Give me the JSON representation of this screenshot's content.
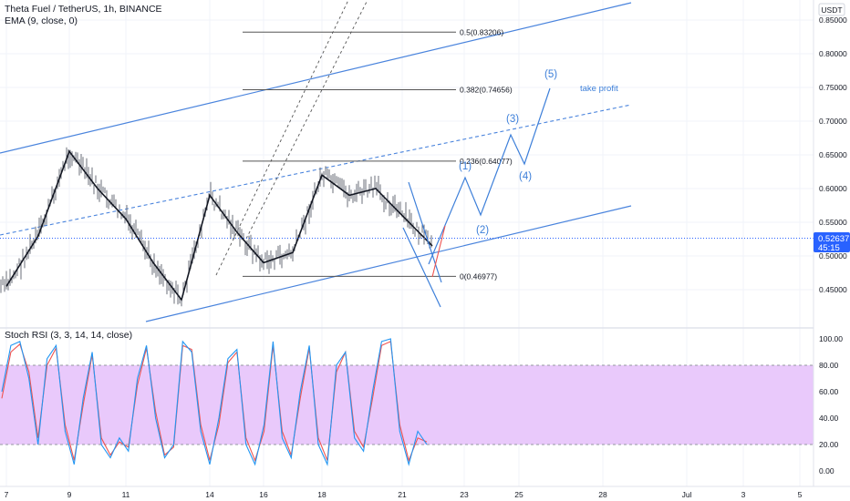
{
  "header": {
    "symbol_line": "Theta Fuel / TetherUS, 1h, BINANCE",
    "ema_line": "EMA (9, close, 0)",
    "currency": "USDT"
  },
  "rsi_panel": {
    "label": "Stoch RSI (3, 3, 14, 14, close)",
    "band_upper": 80,
    "band_lower": 20,
    "band_color": "#e9c9fb",
    "k_color": "#2196f3",
    "d_color": "#ef5350"
  },
  "price_tag": {
    "value": "0.52637",
    "countdown": "45:15",
    "color": "#2962ff"
  },
  "fib_levels": [
    {
      "label": "0.5(0.83206)",
      "value": 0.83206
    },
    {
      "label": "0.382(0.74656)",
      "value": 0.74656
    },
    {
      "label": "0.236(0.64077)",
      "value": 0.64077
    },
    {
      "label": "0(0.46977)",
      "value": 0.46977
    }
  ],
  "annotations": {
    "wave_labels": [
      "(1)",
      "(2)",
      "(3)",
      "(4)",
      "(5)"
    ],
    "take_profit": "take profit",
    "color": "#3d7fd9"
  },
  "chart_data": [
    {
      "type": "candlestick",
      "title": "Theta Fuel / TetherUS, 1h, BINANCE",
      "y_axis_ticks": [
        "0.85000",
        "0.80000",
        "0.75000",
        "0.70000",
        "0.65000",
        "0.60000",
        "0.55000",
        "0.50000",
        "0.45000"
      ],
      "ylim": [
        0.405,
        0.86
      ],
      "x_tick_labels": [
        "7",
        "9",
        "11",
        "14",
        "16",
        "18",
        "21",
        "23",
        "25",
        "28",
        "Jul",
        "3",
        "5"
      ],
      "grid": true,
      "series": [
        {
          "name": "EMA (9, close, 0)",
          "x": [
            "7",
            "8",
            "9",
            "10",
            "11",
            "12",
            "13",
            "14",
            "15",
            "16",
            "17",
            "18",
            "19",
            "20",
            "21",
            "22"
          ],
          "values": [
            0.455,
            0.53,
            0.655,
            0.6,
            0.555,
            0.49,
            0.435,
            0.59,
            0.535,
            0.49,
            0.505,
            0.62,
            0.59,
            0.6,
            0.56,
            0.515
          ]
        }
      ]
    },
    {
      "type": "line",
      "title": "Stoch RSI (3, 3, 14, 14, close)",
      "y_axis_ticks": [
        "100.00",
        "80.00",
        "60.00",
        "40.00",
        "20.00",
        "0.00"
      ],
      "ylim": [
        -3,
        103
      ],
      "series": [
        {
          "name": "K",
          "values": [
            60,
            95,
            98,
            70,
            20,
            85,
            95,
            30,
            5,
            55,
            90,
            20,
            10,
            25,
            15,
            70,
            95,
            40,
            10,
            20,
            98,
            90,
            30,
            5,
            40,
            85,
            92,
            20,
            5,
            35,
            98,
            25,
            10,
            60,
            95,
            20,
            5,
            80,
            90,
            25,
            15,
            60,
            98,
            100,
            30,
            5,
            30,
            20
          ]
        },
        {
          "name": "D",
          "values": [
            55,
            90,
            96,
            75,
            25,
            80,
            93,
            35,
            8,
            50,
            88,
            25,
            12,
            22,
            18,
            65,
            93,
            45,
            12,
            18,
            95,
            92,
            35,
            8,
            35,
            82,
            90,
            25,
            8,
            30,
            95,
            30,
            12,
            55,
            93,
            25,
            8,
            75,
            90,
            30,
            18,
            55,
            95,
            98,
            35,
            8,
            25,
            22
          ]
        }
      ]
    }
  ]
}
